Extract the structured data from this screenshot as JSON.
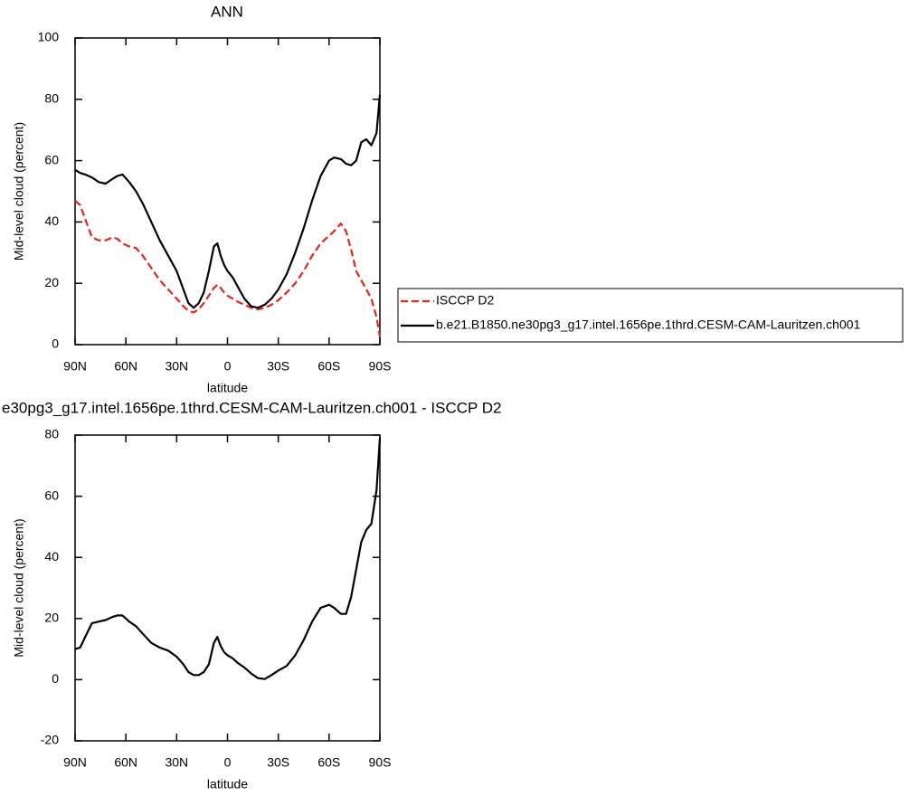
{
  "chart_data": [
    {
      "type": "line",
      "title": "ANN",
      "xlabel": "latitude",
      "ylabel": "Mid-level cloud (percent)",
      "x": [
        90,
        87,
        84,
        80,
        76,
        72,
        68,
        65,
        62,
        58,
        54,
        50,
        45,
        40,
        35,
        30,
        26,
        23,
        20,
        17,
        14,
        11,
        8,
        6,
        4,
        2,
        0,
        -3,
        -6,
        -10,
        -14,
        -18,
        -22,
        -26,
        -30,
        -35,
        -40,
        -45,
        -50,
        -55,
        -60,
        -63,
        -67,
        -70,
        -73,
        -76,
        -79,
        -82,
        -85,
        -88,
        -90
      ],
      "series": [
        {
          "name": "ISCCP D2",
          "color": "#e8241c",
          "dashed": true,
          "values": [
            47,
            45.5,
            41,
            35,
            34,
            34,
            35,
            34.5,
            33,
            32,
            31.5,
            29,
            25,
            21,
            18,
            15,
            12.5,
            11,
            10.5,
            11.5,
            13.5,
            16,
            18.5,
            19.5,
            18.5,
            17,
            16,
            15,
            14,
            13,
            12,
            11.5,
            12,
            13,
            14.5,
            17,
            20,
            24,
            29,
            33,
            35.5,
            37,
            39.5,
            37,
            31,
            24,
            21,
            18,
            15,
            9,
            2.5
          ]
        },
        {
          "name": "b.e21.B1850.ne30pg3_g17.intel.1656pe.1thrd.CESM-CAM-Lauritzen.ch001",
          "color": "#000000",
          "dashed": false,
          "values": [
            57,
            56,
            55.5,
            54.5,
            53,
            52.5,
            54,
            55,
            55.5,
            53,
            50,
            46,
            40,
            34,
            29,
            24,
            18,
            13.5,
            12,
            13.5,
            17,
            24,
            32,
            33,
            29,
            26,
            24,
            22,
            19,
            15,
            12.5,
            12,
            13,
            15,
            18,
            23,
            30,
            38,
            47,
            55,
            60,
            61,
            60.5,
            59,
            58.5,
            60,
            66,
            67,
            65,
            69,
            81.5
          ]
        }
      ],
      "xlim": [
        90,
        -90
      ],
      "xticks": [
        {
          "value": 90,
          "label": "90N"
        },
        {
          "value": 60,
          "label": "60N"
        },
        {
          "value": 30,
          "label": "30N"
        },
        0,
        {
          "value": -30,
          "label": "30S"
        },
        {
          "value": -60,
          "label": "60S"
        },
        {
          "value": -90,
          "label": "90S"
        }
      ],
      "ylim": [
        0,
        100
      ],
      "yticks": [
        0,
        20,
        40,
        60,
        80,
        100
      ],
      "legend": "right"
    },
    {
      "type": "line",
      "title": "e30pg3_g17.intel.1656pe.1thrd.CESM-CAM-Lauritzen.ch001 - ISCCP D2",
      "xlabel": "latitude",
      "ylabel": "Mid-level cloud (percent)",
      "x": [
        90,
        87,
        84,
        80,
        76,
        72,
        68,
        65,
        62,
        58,
        54,
        50,
        45,
        40,
        35,
        30,
        26,
        23,
        20,
        17,
        14,
        11,
        8,
        6,
        4,
        2,
        0,
        -3,
        -6,
        -10,
        -14,
        -18,
        -22,
        -26,
        -30,
        -35,
        -40,
        -45,
        -50,
        -55,
        -60,
        -63,
        -67,
        -70,
        -73,
        -76,
        -79,
        -82,
        -85,
        -88,
        -90
      ],
      "series": [
        {
          "color": "#000000",
          "dashed": false,
          "values": [
            10,
            10.5,
            14,
            18.5,
            19,
            19.5,
            20.5,
            21,
            21,
            19,
            17.5,
            15,
            12,
            10.5,
            9.5,
            7.5,
            5,
            2.5,
            1.5,
            1.5,
            2.5,
            5,
            12,
            14,
            11,
            9,
            8,
            7,
            5.5,
            4,
            2,
            0.5,
            0.2,
            1.5,
            3,
            4.5,
            8,
            13,
            19,
            23.5,
            24.5,
            23.5,
            21.5,
            21.5,
            27,
            36,
            45,
            49,
            51,
            62,
            79
          ]
        }
      ],
      "xlim": [
        90,
        -90
      ],
      "xticks": [
        {
          "value": 90,
          "label": "90N"
        },
        {
          "value": 60,
          "label": "60N"
        },
        {
          "value": 30,
          "label": "30N"
        },
        0,
        {
          "value": -30,
          "label": "30S"
        },
        {
          "value": -60,
          "label": "60S"
        },
        {
          "value": -90,
          "label": "90S"
        }
      ],
      "ylim": [
        -20,
        80
      ],
      "yticks": [
        -20,
        0,
        20,
        40,
        60,
        80
      ]
    }
  ]
}
